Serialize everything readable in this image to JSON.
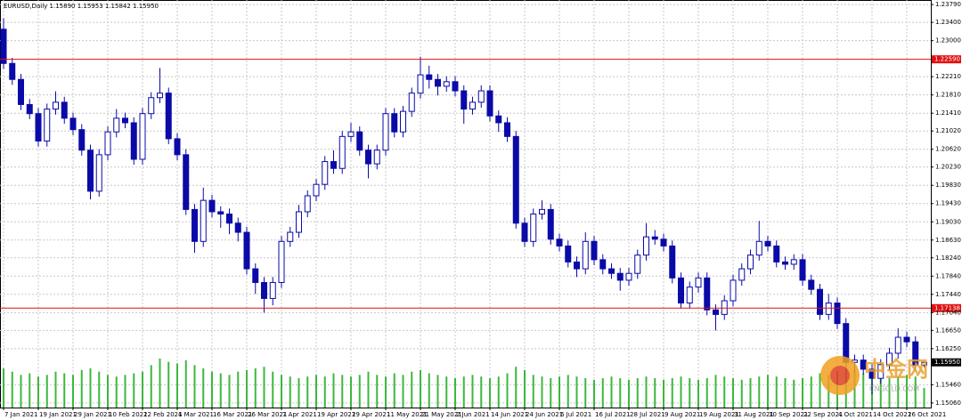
{
  "chart_data": {
    "type": "candlestick",
    "title": "EURUSD,Daily  1.15890 1.15953 1.15842 1.15950",
    "up_color": "#ffffff",
    "down_color": "#0a0aa8",
    "outline_color": "#0a0aa8",
    "volume_color": "#3cb83c",
    "grid": true,
    "categories": [
      "7 Jan 2021",
      null,
      null,
      null,
      "19 Jan 2021",
      null,
      null,
      null,
      "29 Jan 2021",
      null,
      null,
      null,
      "10 Feb 2021",
      null,
      null,
      null,
      "22 Feb 2021",
      null,
      null,
      null,
      "4 Mar 2021",
      null,
      null,
      null,
      "16 Mar 2021",
      null,
      null,
      null,
      "26 Mar 2021",
      null,
      null,
      null,
      "7 Apr 2021",
      null,
      null,
      null,
      "19 Apr 2021",
      null,
      null,
      null,
      "29 Apr 2021",
      null,
      null,
      null,
      "11 May 2021",
      null,
      null,
      null,
      "21 May 2021",
      null,
      null,
      null,
      "2 Jun 2021",
      null,
      null,
      null,
      "14 Jun 2021",
      null,
      null,
      null,
      "24 Jun 2021",
      null,
      null,
      null,
      "6 Jul 2021",
      null,
      null,
      null,
      "16 Jul 2021",
      null,
      null,
      null,
      "28 Jul 2021",
      null,
      null,
      null,
      "9 Aug 2021",
      null,
      null,
      null,
      "19 Aug 2021",
      null,
      null,
      null,
      "31 Aug 2021",
      null,
      null,
      null,
      "10 Sep 2021",
      null,
      null,
      null,
      "22 Sep 2021",
      null,
      null,
      null,
      "4 Oct 2021",
      null,
      null,
      null,
      "14 Oct 2021",
      null,
      null,
      null,
      "26 Oct 2021",
      null,
      null
    ],
    "open": [
      1.2325,
      1.225,
      1.2215,
      1.216,
      1.214,
      1.208,
      1.215,
      1.2165,
      1.213,
      1.2105,
      1.206,
      1.197,
      1.205,
      1.21,
      1.213,
      1.212,
      1.204,
      1.214,
      1.2175,
      1.2185,
      1.2085,
      1.205,
      1.193,
      1.186,
      1.195,
      1.1925,
      1.192,
      1.19,
      1.188,
      1.18,
      1.177,
      1.1735,
      1.177,
      1.186,
      1.188,
      1.1925,
      1.196,
      1.1985,
      1.2035,
      1.202,
      1.209,
      1.21,
      1.206,
      1.203,
      1.206,
      1.214,
      1.21,
      1.2145,
      1.2185,
      1.2225,
      1.2215,
      1.22,
      1.221,
      1.219,
      1.215,
      1.2165,
      1.219,
      1.2135,
      1.212,
      1.209,
      1.19,
      1.186,
      1.192,
      1.193,
      1.1865,
      1.185,
      1.1815,
      1.18,
      1.186,
      1.182,
      1.18,
      1.179,
      1.1775,
      1.179,
      1.183,
      1.187,
      1.1865,
      1.185,
      1.178,
      1.1725,
      1.176,
      1.178,
      1.171,
      1.17,
      1.173,
      1.1775,
      1.18,
      1.183,
      1.186,
      1.185,
      1.1815,
      1.181,
      1.182,
      1.1775,
      1.1755,
      1.17,
      1.1725,
      1.168,
      1.1595,
      1.16,
      1.158,
      1.156,
      1.159,
      1.1615,
      1.165,
      1.164,
      1.1589
    ],
    "high": [
      1.2349,
      1.2262,
      1.2227,
      1.2172,
      1.2152,
      1.2162,
      1.2189,
      1.2177,
      1.2142,
      1.2117,
      1.2072,
      1.2062,
      1.2112,
      1.215,
      1.2142,
      1.2132,
      1.2152,
      1.2187,
      1.224,
      1.2197,
      1.2097,
      1.2062,
      1.1942,
      1.1978,
      1.1962,
      1.1937,
      1.1932,
      1.1912,
      1.1892,
      1.1812,
      1.1782,
      1.1782,
      1.1872,
      1.1892,
      1.194,
      1.1972,
      1.1997,
      1.2047,
      1.206,
      1.2102,
      1.212,
      1.2112,
      1.2072,
      1.2072,
      1.2152,
      1.2152,
      1.2157,
      1.2197,
      1.2265,
      1.2245,
      1.2227,
      1.2222,
      1.2222,
      1.2202,
      1.2177,
      1.2202,
      1.2202,
      1.2147,
      1.2132,
      1.2102,
      1.1912,
      1.1932,
      1.195,
      1.1942,
      1.1877,
      1.1862,
      1.1827,
      1.188,
      1.1872,
      1.1832,
      1.1812,
      1.1802,
      1.1802,
      1.1842,
      1.19,
      1.1885,
      1.1877,
      1.1862,
      1.1792,
      1.1772,
      1.1792,
      1.1792,
      1.1722,
      1.1742,
      1.1787,
      1.1812,
      1.1842,
      1.1905,
      1.1872,
      1.1862,
      1.1827,
      1.1832,
      1.1832,
      1.1787,
      1.1767,
      1.1745,
      1.1737,
      1.1692,
      1.1612,
      1.1612,
      1.1592,
      1.1602,
      1.1627,
      1.167,
      1.1662,
      1.1652,
      1.15953
    ],
    "low": [
      1.2238,
      1.2203,
      1.2148,
      1.2128,
      1.2068,
      1.2068,
      1.2138,
      1.2118,
      1.2093,
      1.2048,
      1.1952,
      1.1958,
      1.2038,
      1.2088,
      1.2108,
      1.2028,
      1.2028,
      1.2128,
      1.2163,
      1.2073,
      1.2038,
      1.1918,
      1.1835,
      1.1848,
      1.1913,
      1.189,
      1.1876,
      1.186,
      1.1788,
      1.1745,
      1.1704,
      1.172,
      1.1758,
      1.1848,
      1.1868,
      1.1913,
      1.1948,
      1.1973,
      1.2008,
      1.2008,
      1.2078,
      1.2048,
      1.1998,
      1.2018,
      1.2048,
      1.2088,
      1.2088,
      1.2133,
      1.2173,
      1.2195,
      1.218,
      1.2188,
      1.2178,
      1.2118,
      1.2138,
      1.2153,
      1.2123,
      1.21,
      1.2078,
      1.1888,
      1.1848,
      1.1848,
      1.1908,
      1.1853,
      1.1838,
      1.1803,
      1.1782,
      1.1788,
      1.1808,
      1.1788,
      1.1778,
      1.1752,
      1.1763,
      1.1778,
      1.1818,
      1.1853,
      1.1838,
      1.1768,
      1.1713,
      1.1713,
      1.1748,
      1.1698,
      1.1665,
      1.1688,
      1.1718,
      1.1763,
      1.1788,
      1.1818,
      1.1838,
      1.1803,
      1.1798,
      1.1798,
      1.1763,
      1.1743,
      1.1688,
      1.1688,
      1.1668,
      1.1583,
      1.1572,
      1.1568,
      1.1525,
      1.1548,
      1.1578,
      1.1603,
      1.1628,
      1.1577,
      1.15842
    ],
    "close": [
      1.225,
      1.2215,
      1.216,
      1.214,
      1.208,
      1.215,
      1.2165,
      1.213,
      1.2105,
      1.206,
      1.197,
      1.205,
      1.21,
      1.213,
      1.212,
      1.204,
      1.214,
      1.2175,
      1.2185,
      1.2085,
      1.205,
      1.193,
      1.186,
      1.195,
      1.1925,
      1.192,
      1.19,
      1.188,
      1.18,
      1.177,
      1.1735,
      1.177,
      1.186,
      1.188,
      1.1925,
      1.196,
      1.1985,
      1.2035,
      1.202,
      1.209,
      1.21,
      1.206,
      1.203,
      1.206,
      1.214,
      1.21,
      1.2145,
      1.2185,
      1.2225,
      1.2215,
      1.22,
      1.221,
      1.219,
      1.215,
      1.2165,
      1.219,
      1.2135,
      1.212,
      1.209,
      1.19,
      1.186,
      1.192,
      1.193,
      1.1865,
      1.185,
      1.1815,
      1.18,
      1.186,
      1.182,
      1.18,
      1.179,
      1.1775,
      1.179,
      1.183,
      1.187,
      1.1865,
      1.185,
      1.178,
      1.1725,
      1.176,
      1.178,
      1.171,
      1.17,
      1.173,
      1.1775,
      1.18,
      1.183,
      1.186,
      1.185,
      1.1815,
      1.181,
      1.182,
      1.1775,
      1.1755,
      1.17,
      1.1725,
      1.168,
      1.1595,
      1.16,
      1.158,
      1.156,
      1.159,
      1.1615,
      1.165,
      1.164,
      1.1589,
      1.1595
    ],
    "volumes": [
      120,
      110,
      100,
      105,
      95,
      100,
      110,
      105,
      100,
      115,
      120,
      110,
      100,
      95,
      100,
      105,
      110,
      130,
      150,
      140,
      135,
      145,
      130,
      120,
      110,
      105,
      100,
      110,
      115,
      120,
      125,
      110,
      100,
      95,
      90,
      95,
      100,
      95,
      105,
      100,
      95,
      100,
      110,
      100,
      95,
      105,
      100,
      110,
      115,
      105,
      100,
      95,
      90,
      95,
      100,
      95,
      90,
      95,
      105,
      125,
      115,
      100,
      95,
      90,
      95,
      100,
      95,
      90,
      85,
      90,
      95,
      90,
      85,
      90,
      95,
      90,
      85,
      90,
      95,
      90,
      85,
      90,
      100,
      95,
      90,
      85,
      90,
      95,
      100,
      95,
      90,
      85,
      90,
      95,
      105,
      100,
      110,
      120,
      115,
      105,
      100,
      95,
      90,
      95,
      100,
      95,
      60
    ],
    "ylim": [
      1.1496,
      1.2389
    ],
    "yticks": [
      {
        "value": 1.2379,
        "label": "1.23790"
      },
      {
        "value": 1.234,
        "label": "1.23400"
      },
      {
        "value": 1.23,
        "label": "1.23000"
      },
      {
        "value": 1.2221,
        "label": "1.22210"
      },
      {
        "value": 1.2181,
        "label": "1.21810"
      },
      {
        "value": 1.2141,
        "label": "1.21410"
      },
      {
        "value": 1.2102,
        "label": "1.21020"
      },
      {
        "value": 1.2062,
        "label": "1.20620"
      },
      {
        "value": 1.2023,
        "label": "1.20230"
      },
      {
        "value": 1.1983,
        "label": "1.19830"
      },
      {
        "value": 1.1943,
        "label": "1.19430"
      },
      {
        "value": 1.1903,
        "label": "1.19030"
      },
      {
        "value": 1.1863,
        "label": "1.18630"
      },
      {
        "value": 1.1824,
        "label": "1.18240"
      },
      {
        "value": 1.1784,
        "label": "1.17840"
      },
      {
        "value": 1.1744,
        "label": "1.17440"
      },
      {
        "value": 1.1704,
        "label": "1.17040"
      },
      {
        "value": 1.1665,
        "label": "1.16650"
      },
      {
        "value": 1.1625,
        "label": "1.16250"
      },
      {
        "value": 1.1546,
        "label": "1.15460"
      },
      {
        "value": 1.1506,
        "label": "1.15060"
      }
    ],
    "hlines": [
      {
        "value": 1.2259,
        "label": "1.22590"
      },
      {
        "value": 1.17138,
        "label": "1.17138"
      }
    ],
    "hline_color": "#e01010",
    "price_label": {
      "value": 1.1595,
      "label": "1.15950"
    },
    "watermark": [
      "中金网",
      "CNGOLD.COM"
    ]
  }
}
